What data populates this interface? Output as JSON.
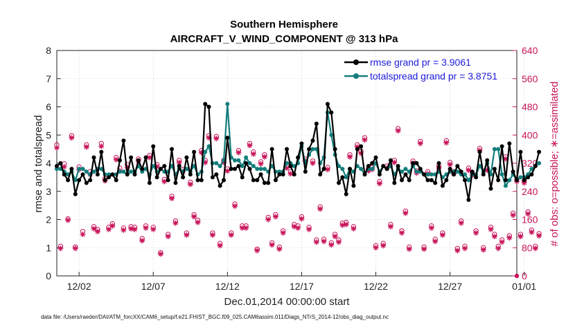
{
  "chart_data": {
    "type": "line",
    "title": "Southern Hemisphere",
    "subtitle": "AIRCRAFT_V_WIND_COMPONENT @ 313 hPa",
    "xlabel": "Dec.01,2014 00:00:00 start",
    "ylabel": "rmse and totalspread",
    "y2label": "# of obs: o=possible; ∗=assimilated",
    "ylim": [
      0,
      8
    ],
    "y2lim": [
      0,
      640
    ],
    "xlim": [
      0.5,
      31.0
    ],
    "yticks": [
      "0",
      "1",
      "2",
      "3",
      "4",
      "5",
      "6",
      "7",
      "8"
    ],
    "y2ticks": [
      "0",
      "80",
      "160",
      "240",
      "320",
      "400",
      "480",
      "560",
      "640"
    ],
    "xticks": [
      {
        "label": "12/02",
        "x": 2
      },
      {
        "label": "12/07",
        "x": 7
      },
      {
        "label": "12/12",
        "x": 12
      },
      {
        "label": "12/17",
        "x": 17
      },
      {
        "label": "12/22",
        "x": 22
      },
      {
        "label": "12/27",
        "x": 27
      },
      {
        "label": "01/01",
        "x": 32
      }
    ],
    "legend_position": "top-right",
    "grid": true,
    "series": [
      {
        "name": "rmse grand pr = 3.9061",
        "color": "#000000",
        "axis": "left",
        "x_start": 0.5,
        "x_step": 0.25,
        "values": [
          3.9,
          4.0,
          3.6,
          3.4,
          3.8,
          2.9,
          3.4,
          3.6,
          3.3,
          3.4,
          4.2,
          3.6,
          4.4,
          3.4,
          3.5,
          3.6,
          3.4,
          4.1,
          4.8,
          3.6,
          4.2,
          3.6,
          4.1,
          3.8,
          4.2,
          3.3,
          4.6,
          3.5,
          3.8,
          3.9,
          3.4,
          4.5,
          3.3,
          3.9,
          3.5,
          4.2,
          3.6,
          4.4,
          3.4,
          3.4,
          6.1,
          6.0,
          3.5,
          3.6,
          3.2,
          3.4,
          4.9,
          3.8,
          3.8,
          3.9,
          3.5,
          4.0,
          3.8,
          3.4,
          3.4,
          3.6,
          3.3,
          3.3,
          4.5,
          3.4,
          3.6,
          3.6,
          4.5,
          3.9,
          3.6,
          4.2,
          4.7,
          3.7,
          4.5,
          4.8,
          5.4,
          3.6,
          3.8,
          6.1,
          5.8,
          4.5,
          3.3,
          3.5,
          2.9,
          3.8,
          3.2,
          4.5,
          4.6,
          3.6,
          3.9,
          4.0,
          4.2,
          3.6,
          3.9,
          3.8,
          4.1,
          3.3,
          3.9,
          3.4,
          3.6,
          3.4,
          4.0,
          4.0,
          3.8,
          3.6,
          3.4,
          3.4,
          3.3,
          4.0,
          3.2,
          3.4,
          3.8,
          3.6,
          3.9,
          3.7,
          3.4,
          2.7,
          3.7,
          3.5,
          4.4,
          3.6,
          4.1,
          3.1,
          3.8,
          3.4,
          4.6,
          3.4,
          4.7,
          3.7,
          3.4,
          4.4,
          3.4,
          3.5,
          3.6,
          3.9,
          4.4
        ]
      },
      {
        "name": "totalspread grand pr = 3.8751",
        "color": "#137e7c",
        "axis": "left",
        "x_start": 0.5,
        "x_step": 0.25,
        "values": [
          3.8,
          3.8,
          3.7,
          3.6,
          3.7,
          3.4,
          3.8,
          3.8,
          3.7,
          3.6,
          3.7,
          3.8,
          3.8,
          3.6,
          3.6,
          3.6,
          3.6,
          3.7,
          3.7,
          3.6,
          3.7,
          3.7,
          3.9,
          3.7,
          3.8,
          3.6,
          3.9,
          3.7,
          3.8,
          3.7,
          3.7,
          3.9,
          3.6,
          3.8,
          3.7,
          3.8,
          3.7,
          3.9,
          3.6,
          3.7,
          4.4,
          4.6,
          4.0,
          4.0,
          3.9,
          4.1,
          6.1,
          4.2,
          4.1,
          4.1,
          3.9,
          4.2,
          4.0,
          3.9,
          3.8,
          3.8,
          3.8,
          3.7,
          3.9,
          3.7,
          3.7,
          3.7,
          4.0,
          4.0,
          3.9,
          4.0,
          4.6,
          4.0,
          4.3,
          4.5,
          4.5,
          4.0,
          4.2,
          5.8,
          5.0,
          4.3,
          3.9,
          3.8,
          3.5,
          3.8,
          3.7,
          3.9,
          3.8,
          3.6,
          3.8,
          3.8,
          4.0,
          3.7,
          3.9,
          3.8,
          3.9,
          3.6,
          3.8,
          3.7,
          3.8,
          3.7,
          3.9,
          3.7,
          3.7,
          3.6,
          3.6,
          3.6,
          3.6,
          3.7,
          3.5,
          3.6,
          3.7,
          3.7,
          3.7,
          3.6,
          3.6,
          3.4,
          3.6,
          3.6,
          3.9,
          3.7,
          4.0,
          3.6,
          4.5,
          4.5,
          3.6,
          3.2,
          3.4,
          3.6,
          3.4,
          3.5,
          3.5,
          3.6,
          3.8,
          3.9,
          4.0
        ]
      },
      {
        "name": "obs possible",
        "color": "#c8145a",
        "axis": "right",
        "marker": "circle",
        "x_start": 0.5,
        "x_step": 0.25,
        "values": [
          372,
          84,
          318,
          162,
          398,
          82,
          309,
          126,
          372,
          296,
          140,
          132,
          376,
          276,
          138,
          148,
          336,
          306,
          136,
          316,
          140,
          138,
          332,
          106,
          142,
          342,
          138,
          316,
          66,
          274,
          118,
          226,
          156,
          328,
          302,
          122,
          266,
          174,
          158,
          356,
          328,
          398,
          122,
          396,
          92,
          328,
          304,
          122,
          204,
          356,
          142,
          142,
          376,
          352,
          76,
          324,
          344,
          166,
          94,
          174,
          82,
          128,
          312,
          296,
          146,
          142,
          168,
          332,
          138,
          326,
          102,
          196,
          104,
          308,
          94,
          118,
          102,
          150,
          152,
          344,
          140,
          372,
          354,
          392,
          304,
          308,
          86,
          268,
          92,
          312,
          146,
          328,
          418,
          128,
          184,
          82,
          326,
          298,
          382,
          82,
          296,
          142,
          104,
          312,
          122,
          384,
          322,
          296,
          78,
          156,
          84,
          306,
          292,
          128,
          362,
          80,
          306,
          138,
          118,
          84,
          102,
          338,
          114,
          178,
          274,
          118,
          270,
          182,
          130,
          84,
          120
        ]
      },
      {
        "name": "obs assimilated",
        "color": "#c8145a",
        "axis": "right",
        "marker": "star",
        "x_start": 0.5,
        "x_step": 0.25,
        "values": [
          364,
          78,
          310,
          158,
          392,
          78,
          302,
          118,
          366,
          288,
          134,
          126,
          368,
          270,
          132,
          142,
          330,
          298,
          130,
          308,
          134,
          132,
          326,
          100,
          136,
          336,
          132,
          310,
          62,
          268,
          112,
          220,
          150,
          322,
          296,
          116,
          260,
          168,
          152,
          350,
          322,
          392,
          116,
          390,
          86,
          322,
          298,
          116,
          198,
          350,
          136,
          136,
          370,
          346,
          72,
          318,
          338,
          160,
          88,
          168,
          76,
          122,
          306,
          290,
          140,
          136,
          162,
          326,
          132,
          320,
          96,
          190,
          98,
          302,
          88,
          112,
          96,
          144,
          146,
          338,
          134,
          366,
          348,
          386,
          298,
          302,
          80,
          262,
          86,
          306,
          140,
          322,
          412,
          122,
          178,
          76,
          320,
          292,
          376,
          76,
          290,
          136,
          98,
          306,
          116,
          378,
          316,
          290,
          72,
          150,
          78,
          300,
          286,
          122,
          356,
          74,
          300,
          132,
          112,
          78,
          96,
          332,
          108,
          172,
          268,
          112,
          264,
          176,
          124,
          78,
          114
        ]
      }
    ]
  },
  "legend": {
    "rmse": "rmse grand pr = 3.9061",
    "spread": "totalspread grand pr = 3.8751"
  },
  "footer": "data file: /Users/raeder/DAI/ATM_forcXX/CAM6_setup/f.e21.FHIST_BGC.f09_025.CAM6assim.011/Diags_NTrS_2014-12/obs_diag_output.nc",
  "colors": {
    "rmse": "#000000",
    "spread": "#137e7c",
    "obs": "#c8145a",
    "legend_text": "#1a1adc"
  }
}
